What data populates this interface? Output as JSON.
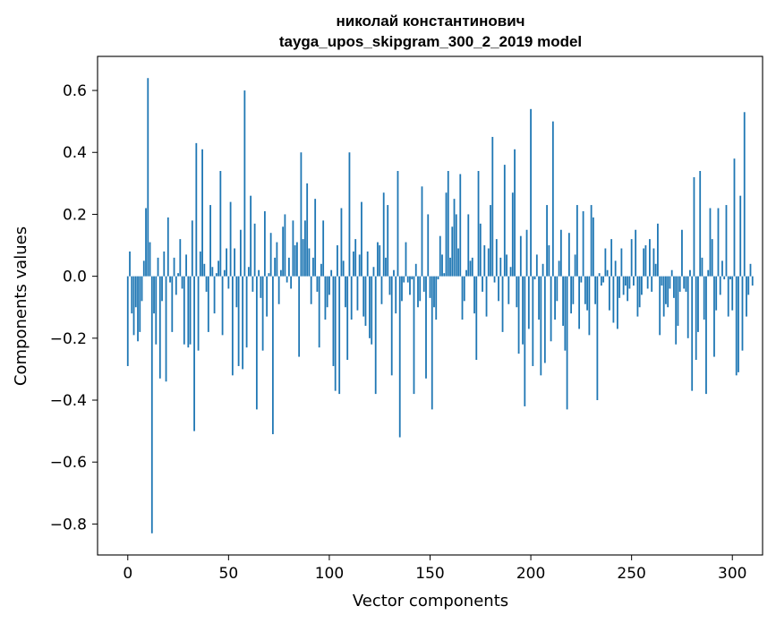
{
  "chart_data": {
    "type": "bar",
    "title": "николай константинович",
    "subtitle": "tayga_upos_skipgram_300_2_2019 model",
    "xlabel": "Vector components",
    "ylabel": "Components values",
    "xlim": [
      -15,
      315
    ],
    "ylim": [
      -0.9,
      0.71
    ],
    "xticks": [
      0,
      50,
      100,
      150,
      200,
      250,
      300
    ],
    "xtick_labels": [
      "0",
      "50",
      "100",
      "150",
      "200",
      "250",
      "300"
    ],
    "yticks": [
      -0.8,
      -0.6,
      -0.4,
      -0.2,
      0.0,
      0.2,
      0.4,
      0.6
    ],
    "ytick_labels": [
      "−0.8",
      "−0.6",
      "−0.4",
      "−0.2",
      "0.0",
      "0.2",
      "0.4",
      "0.6"
    ],
    "bar_color": "#1f77b4",
    "grid": false,
    "values": [
      -0.29,
      0.08,
      -0.12,
      -0.19,
      -0.1,
      -0.21,
      -0.18,
      -0.08,
      0.05,
      0.22,
      0.64,
      0.11,
      -0.83,
      -0.12,
      -0.22,
      0.06,
      -0.33,
      -0.08,
      0.08,
      -0.34,
      0.19,
      -0.02,
      -0.18,
      0.06,
      -0.06,
      0.01,
      0.12,
      -0.04,
      -0.22,
      0.07,
      -0.23,
      -0.22,
      0.18,
      -0.5,
      0.43,
      -0.24,
      0.08,
      0.41,
      0.04,
      -0.05,
      -0.18,
      0.23,
      0.03,
      -0.12,
      0.01,
      0.05,
      0.34,
      -0.19,
      0.02,
      0.09,
      -0.04,
      0.24,
      -0.32,
      0.09,
      -0.1,
      -0.29,
      0.15,
      -0.3,
      0.6,
      -0.23,
      0.03,
      0.26,
      -0.05,
      0.17,
      -0.43,
      0.02,
      -0.07,
      -0.24,
      0.21,
      -0.13,
      0.01,
      0.14,
      -0.51,
      0.06,
      0.11,
      -0.09,
      0.02,
      0.16,
      0.2,
      -0.02,
      0.06,
      -0.04,
      0.18,
      0.1,
      0.11,
      -0.26,
      0.4,
      0.12,
      0.18,
      0.3,
      0.09,
      -0.09,
      0.06,
      0.25,
      -0.05,
      -0.23,
      0.04,
      0.18,
      -0.14,
      -0.1,
      -0.06,
      0.02,
      -0.29,
      -0.37,
      0.1,
      -0.38,
      0.22,
      0.05,
      -0.1,
      -0.27,
      0.4,
      -0.14,
      0.08,
      0.12,
      -0.11,
      0.07,
      0.24,
      -0.13,
      -0.16,
      0.08,
      -0.2,
      -0.22,
      0.03,
      -0.38,
      0.11,
      0.1,
      -0.09,
      0.27,
      0.06,
      0.23,
      -0.06,
      -0.32,
      0.02,
      -0.12,
      0.34,
      -0.52,
      -0.08,
      -0.02,
      0.11,
      -0.02,
      -0.06,
      -0.01,
      -0.38,
      0.04,
      -0.1,
      -0.08,
      0.29,
      -0.05,
      -0.33,
      0.2,
      -0.07,
      -0.43,
      -0.1,
      -0.14,
      -0.01,
      0.13,
      0.07,
      0.01,
      0.27,
      0.34,
      0.06,
      0.16,
      0.25,
      0.2,
      0.09,
      0.33,
      -0.14,
      -0.08,
      0.02,
      0.2,
      0.05,
      0.06,
      -0.12,
      -0.27,
      0.34,
      0.17,
      -0.05,
      0.1,
      -0.13,
      0.09,
      0.23,
      0.45,
      -0.02,
      0.12,
      -0.08,
      0.06,
      -0.18,
      0.36,
      0.07,
      -0.09,
      0.03,
      0.27,
      0.41,
      -0.1,
      -0.25,
      0.13,
      -0.22,
      -0.42,
      0.15,
      -0.17,
      0.54,
      -0.29,
      -0.01,
      0.07,
      -0.14,
      -0.32,
      0.04,
      -0.28,
      0.23,
      0.1,
      -0.21,
      0.5,
      -0.14,
      -0.08,
      0.05,
      0.15,
      -0.16,
      -0.24,
      -0.43,
      0.14,
      -0.12,
      -0.09,
      0.07,
      0.23,
      -0.17,
      -0.02,
      0.21,
      -0.09,
      -0.11,
      -0.19,
      0.23,
      0.19,
      -0.09,
      -0.4,
      0.01,
      -0.03,
      -0.02,
      0.09,
      0.02,
      -0.11,
      0.12,
      -0.15,
      0.05,
      -0.17,
      -0.07,
      0.09,
      -0.06,
      -0.03,
      -0.08,
      -0.04,
      0.12,
      -0.03,
      0.15,
      -0.13,
      -0.1,
      -0.06,
      0.09,
      0.1,
      -0.04,
      0.12,
      -0.05,
      0.09,
      0.04,
      0.17,
      -0.19,
      -0.03,
      -0.13,
      -0.09,
      -0.1,
      -0.04,
      0.02,
      -0.07,
      -0.22,
      -0.16,
      -0.05,
      0.15,
      -0.04,
      -0.05,
      -0.2,
      0.02,
      -0.37,
      0.32,
      -0.27,
      -0.18,
      0.34,
      0.06,
      -0.14,
      -0.38,
      0.02,
      0.22,
      0.12,
      -0.26,
      -0.11,
      0.22,
      -0.06,
      0.05,
      -0.01,
      0.23,
      -0.13,
      -0.01,
      -0.11,
      0.38,
      -0.32,
      -0.31,
      0.26,
      -0.24,
      0.53,
      -0.13,
      -0.06,
      0.04,
      -0.03
    ]
  }
}
